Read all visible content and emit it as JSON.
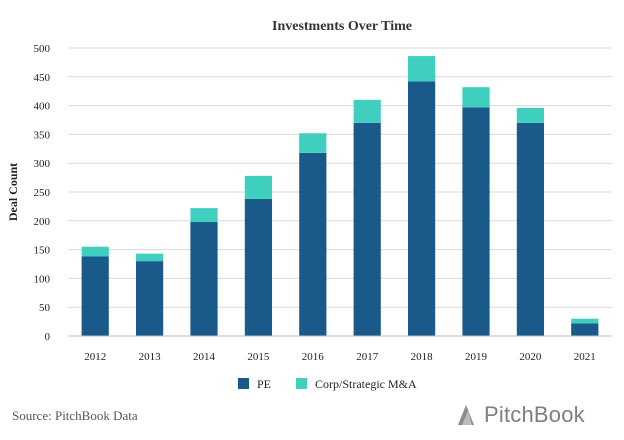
{
  "chart_data": {
    "type": "bar",
    "stacked": true,
    "title": "Investments Over Time",
    "ylabel": "Deal Count",
    "xlabel": "",
    "categories": [
      "2012",
      "2013",
      "2014",
      "2015",
      "2016",
      "2017",
      "2018",
      "2019",
      "2020",
      "2021"
    ],
    "series": [
      {
        "name": "PE",
        "color": "#1a5a8a",
        "values": [
          138,
          130,
          198,
          238,
          318,
          370,
          442,
          397,
          370,
          22
        ]
      },
      {
        "name": "Corp/Strategic M&A",
        "color": "#3fcfbe",
        "values": [
          17,
          13,
          24,
          40,
          34,
          40,
          44,
          35,
          26,
          8
        ]
      }
    ],
    "ylim": [
      0,
      500
    ],
    "yticks": [
      0,
      50,
      100,
      150,
      200,
      250,
      300,
      350,
      400,
      450,
      500
    ],
    "grid": true,
    "legend_position": "bottom"
  },
  "footer": {
    "source": "Source: PitchBook Data",
    "brand": "PitchBook"
  }
}
